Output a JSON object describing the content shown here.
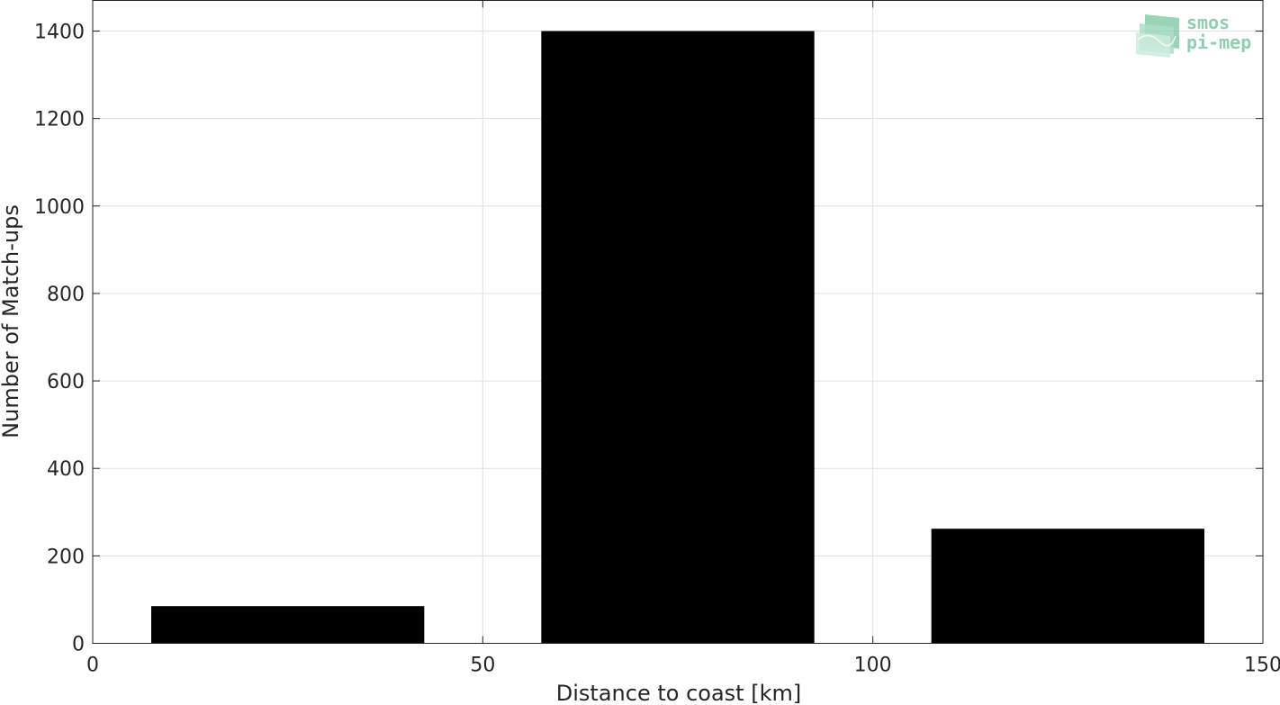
{
  "chart_data": {
    "type": "bar",
    "title": "",
    "xlabel": "Distance to coast [km]",
    "ylabel": "Number of Match-ups",
    "xlim": [
      0,
      150
    ],
    "ylim": [
      0,
      1470
    ],
    "x_ticks": [
      0,
      50,
      100,
      150
    ],
    "y_ticks": [
      0,
      200,
      400,
      600,
      800,
      1000,
      1200,
      1400
    ],
    "grid": true,
    "bar_color": "#000000",
    "bars": [
      {
        "x_start": 7.5,
        "x_end": 42.5,
        "value": 85
      },
      {
        "x_start": 57.5,
        "x_end": 92.5,
        "value": 1400
      },
      {
        "x_start": 107.5,
        "x_end": 142.5,
        "value": 262
      }
    ]
  },
  "logo": {
    "line1": "smos",
    "line2": "pi-mep",
    "color": "#8fcfb0"
  }
}
